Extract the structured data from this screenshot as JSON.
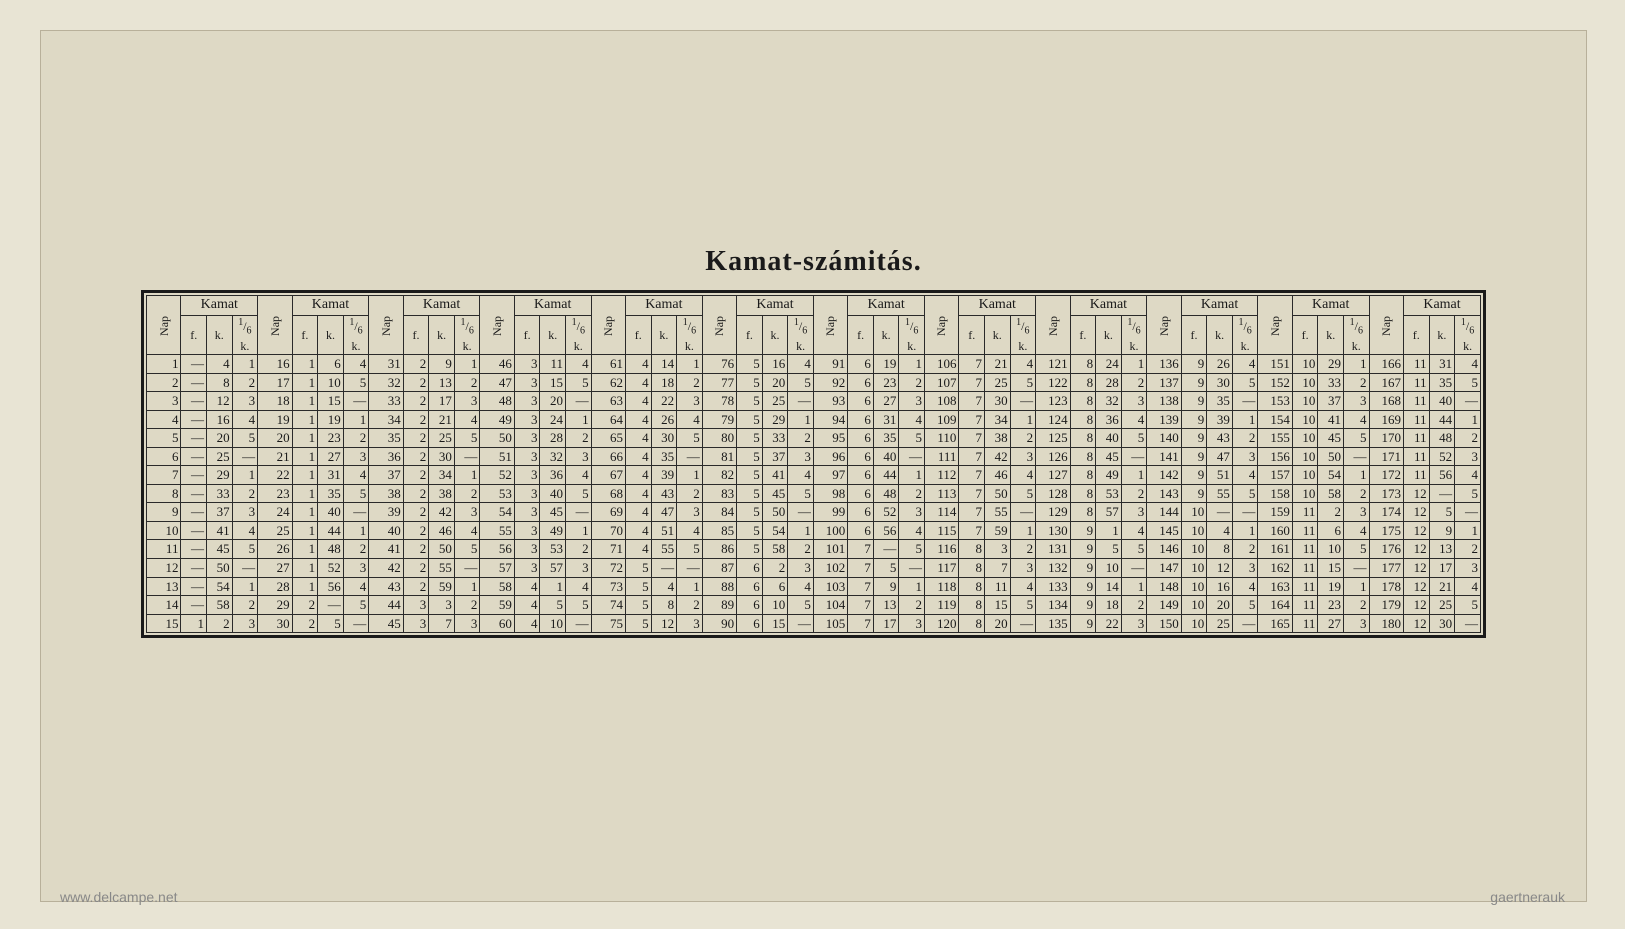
{
  "title": "Kamat-számitás.",
  "watermark_left": "www.delcampe.net",
  "watermark_right": "gaertnerauk",
  "headers": {
    "nap": "Nap",
    "kamat": "Kamat",
    "sub": [
      "f.",
      "k.",
      "1/6 k."
    ]
  },
  "table": {
    "type": "table",
    "background_color": "#ded9c5",
    "border_color": "#1a1a1a",
    "text_color": "#1a1a1a",
    "title_fontsize": 28,
    "cell_fontsize": 13,
    "header_fontsize": 14,
    "blocks": 12,
    "rows_per_block": 15
  },
  "data": [
    [
      [
        1,
        "—",
        4,
        1
      ],
      [
        2,
        "—",
        8,
        2
      ],
      [
        3,
        "—",
        12,
        3
      ],
      [
        4,
        "—",
        16,
        4
      ],
      [
        5,
        "—",
        20,
        5
      ],
      [
        6,
        "—",
        25,
        "—"
      ],
      [
        7,
        "—",
        29,
        1
      ],
      [
        8,
        "—",
        33,
        2
      ],
      [
        9,
        "—",
        37,
        3
      ],
      [
        10,
        "—",
        41,
        4
      ],
      [
        11,
        "—",
        45,
        5
      ],
      [
        12,
        "—",
        50,
        "—"
      ],
      [
        13,
        "—",
        54,
        1
      ],
      [
        14,
        "—",
        58,
        2
      ],
      [
        15,
        1,
        2,
        3
      ]
    ],
    [
      [
        16,
        1,
        6,
        4
      ],
      [
        17,
        1,
        10,
        5
      ],
      [
        18,
        1,
        15,
        "—"
      ],
      [
        19,
        1,
        19,
        1
      ],
      [
        20,
        1,
        23,
        2
      ],
      [
        21,
        1,
        27,
        3
      ],
      [
        22,
        1,
        31,
        4
      ],
      [
        23,
        1,
        35,
        5
      ],
      [
        24,
        1,
        40,
        "—"
      ],
      [
        25,
        1,
        44,
        1
      ],
      [
        26,
        1,
        48,
        2
      ],
      [
        27,
        1,
        52,
        3
      ],
      [
        28,
        1,
        56,
        4
      ],
      [
        29,
        2,
        "—",
        5
      ],
      [
        30,
        2,
        5,
        "—"
      ]
    ],
    [
      [
        31,
        2,
        9,
        1
      ],
      [
        32,
        2,
        13,
        2
      ],
      [
        33,
        2,
        17,
        3
      ],
      [
        34,
        2,
        21,
        4
      ],
      [
        35,
        2,
        25,
        5
      ],
      [
        36,
        2,
        30,
        "—"
      ],
      [
        37,
        2,
        34,
        1
      ],
      [
        38,
        2,
        38,
        2
      ],
      [
        39,
        2,
        42,
        3
      ],
      [
        40,
        2,
        46,
        4
      ],
      [
        41,
        2,
        50,
        5
      ],
      [
        42,
        2,
        55,
        "—"
      ],
      [
        43,
        2,
        59,
        1
      ],
      [
        44,
        3,
        3,
        2
      ],
      [
        45,
        3,
        7,
        3
      ]
    ],
    [
      [
        46,
        3,
        11,
        4
      ],
      [
        47,
        3,
        15,
        5
      ],
      [
        48,
        3,
        20,
        "—"
      ],
      [
        49,
        3,
        24,
        1
      ],
      [
        50,
        3,
        28,
        2
      ],
      [
        51,
        3,
        32,
        3
      ],
      [
        52,
        3,
        36,
        4
      ],
      [
        53,
        3,
        40,
        5
      ],
      [
        54,
        3,
        45,
        "—"
      ],
      [
        55,
        3,
        49,
        1
      ],
      [
        56,
        3,
        53,
        2
      ],
      [
        57,
        3,
        57,
        3
      ],
      [
        58,
        4,
        1,
        4
      ],
      [
        59,
        4,
        5,
        5
      ],
      [
        60,
        4,
        10,
        "—"
      ]
    ],
    [
      [
        61,
        4,
        14,
        1
      ],
      [
        62,
        4,
        18,
        2
      ],
      [
        63,
        4,
        22,
        3
      ],
      [
        64,
        4,
        26,
        4
      ],
      [
        65,
        4,
        30,
        5
      ],
      [
        66,
        4,
        35,
        "—"
      ],
      [
        67,
        4,
        39,
        1
      ],
      [
        68,
        4,
        43,
        2
      ],
      [
        69,
        4,
        47,
        3
      ],
      [
        70,
        4,
        51,
        4
      ],
      [
        71,
        4,
        55,
        5
      ],
      [
        72,
        5,
        "—",
        "—"
      ],
      [
        73,
        5,
        4,
        1
      ],
      [
        74,
        5,
        8,
        2
      ],
      [
        75,
        5,
        12,
        3
      ]
    ],
    [
      [
        76,
        5,
        16,
        4
      ],
      [
        77,
        5,
        20,
        5
      ],
      [
        78,
        5,
        25,
        "—"
      ],
      [
        79,
        5,
        29,
        1
      ],
      [
        80,
        5,
        33,
        2
      ],
      [
        81,
        5,
        37,
        3
      ],
      [
        82,
        5,
        41,
        4
      ],
      [
        83,
        5,
        45,
        5
      ],
      [
        84,
        5,
        50,
        "—"
      ],
      [
        85,
        5,
        54,
        1
      ],
      [
        86,
        5,
        58,
        2
      ],
      [
        87,
        6,
        2,
        3
      ],
      [
        88,
        6,
        6,
        4
      ],
      [
        89,
        6,
        10,
        5
      ],
      [
        90,
        6,
        15,
        "—"
      ]
    ],
    [
      [
        91,
        6,
        19,
        1
      ],
      [
        92,
        6,
        23,
        2
      ],
      [
        93,
        6,
        27,
        3
      ],
      [
        94,
        6,
        31,
        4
      ],
      [
        95,
        6,
        35,
        5
      ],
      [
        96,
        6,
        40,
        "—"
      ],
      [
        97,
        6,
        44,
        1
      ],
      [
        98,
        6,
        48,
        2
      ],
      [
        99,
        6,
        52,
        3
      ],
      [
        100,
        6,
        56,
        4
      ],
      [
        101,
        7,
        "—",
        5
      ],
      [
        102,
        7,
        5,
        "—"
      ],
      [
        103,
        7,
        9,
        1
      ],
      [
        104,
        7,
        13,
        2
      ],
      [
        105,
        7,
        17,
        3
      ]
    ],
    [
      [
        106,
        7,
        21,
        4
      ],
      [
        107,
        7,
        25,
        5
      ],
      [
        108,
        7,
        30,
        "—"
      ],
      [
        109,
        7,
        34,
        1
      ],
      [
        110,
        7,
        38,
        2
      ],
      [
        111,
        7,
        42,
        3
      ],
      [
        112,
        7,
        46,
        4
      ],
      [
        113,
        7,
        50,
        5
      ],
      [
        114,
        7,
        55,
        "—"
      ],
      [
        115,
        7,
        59,
        1
      ],
      [
        116,
        8,
        3,
        2
      ],
      [
        117,
        8,
        7,
        3
      ],
      [
        118,
        8,
        11,
        4
      ],
      [
        119,
        8,
        15,
        5
      ],
      [
        120,
        8,
        20,
        "—"
      ]
    ],
    [
      [
        121,
        8,
        24,
        1
      ],
      [
        122,
        8,
        28,
        2
      ],
      [
        123,
        8,
        32,
        3
      ],
      [
        124,
        8,
        36,
        4
      ],
      [
        125,
        8,
        40,
        5
      ],
      [
        126,
        8,
        45,
        "—"
      ],
      [
        127,
        8,
        49,
        1
      ],
      [
        128,
        8,
        53,
        2
      ],
      [
        129,
        8,
        57,
        3
      ],
      [
        130,
        9,
        1,
        4
      ],
      [
        131,
        9,
        5,
        5
      ],
      [
        132,
        9,
        10,
        "—"
      ],
      [
        133,
        9,
        14,
        1
      ],
      [
        134,
        9,
        18,
        2
      ],
      [
        135,
        9,
        22,
        3
      ]
    ],
    [
      [
        136,
        9,
        26,
        4
      ],
      [
        137,
        9,
        30,
        5
      ],
      [
        138,
        9,
        35,
        "—"
      ],
      [
        139,
        9,
        39,
        1
      ],
      [
        140,
        9,
        43,
        2
      ],
      [
        141,
        9,
        47,
        3
      ],
      [
        142,
        9,
        51,
        4
      ],
      [
        143,
        9,
        55,
        5
      ],
      [
        144,
        10,
        "—",
        "—"
      ],
      [
        145,
        10,
        4,
        1
      ],
      [
        146,
        10,
        8,
        2
      ],
      [
        147,
        10,
        12,
        3
      ],
      [
        148,
        10,
        16,
        4
      ],
      [
        149,
        10,
        20,
        5
      ],
      [
        150,
        10,
        25,
        "—"
      ]
    ],
    [
      [
        151,
        10,
        29,
        1
      ],
      [
        152,
        10,
        33,
        2
      ],
      [
        153,
        10,
        37,
        3
      ],
      [
        154,
        10,
        41,
        4
      ],
      [
        155,
        10,
        45,
        5
      ],
      [
        156,
        10,
        50,
        "—"
      ],
      [
        157,
        10,
        54,
        1
      ],
      [
        158,
        10,
        58,
        2
      ],
      [
        159,
        11,
        2,
        3
      ],
      [
        160,
        11,
        6,
        4
      ],
      [
        161,
        11,
        10,
        5
      ],
      [
        162,
        11,
        15,
        "—"
      ],
      [
        163,
        11,
        19,
        1
      ],
      [
        164,
        11,
        23,
        2
      ],
      [
        165,
        11,
        27,
        3
      ]
    ],
    [
      [
        166,
        11,
        31,
        4
      ],
      [
        167,
        11,
        35,
        5
      ],
      [
        168,
        11,
        40,
        "—"
      ],
      [
        169,
        11,
        44,
        1
      ],
      [
        170,
        11,
        48,
        2
      ],
      [
        171,
        11,
        52,
        3
      ],
      [
        172,
        11,
        56,
        4
      ],
      [
        173,
        12,
        "—",
        5
      ],
      [
        174,
        12,
        5,
        "—"
      ],
      [
        175,
        12,
        9,
        1
      ],
      [
        176,
        12,
        13,
        2
      ],
      [
        177,
        12,
        17,
        3
      ],
      [
        178,
        12,
        21,
        4
      ],
      [
        179,
        12,
        25,
        5
      ],
      [
        180,
        12,
        30,
        "—"
      ]
    ]
  ]
}
